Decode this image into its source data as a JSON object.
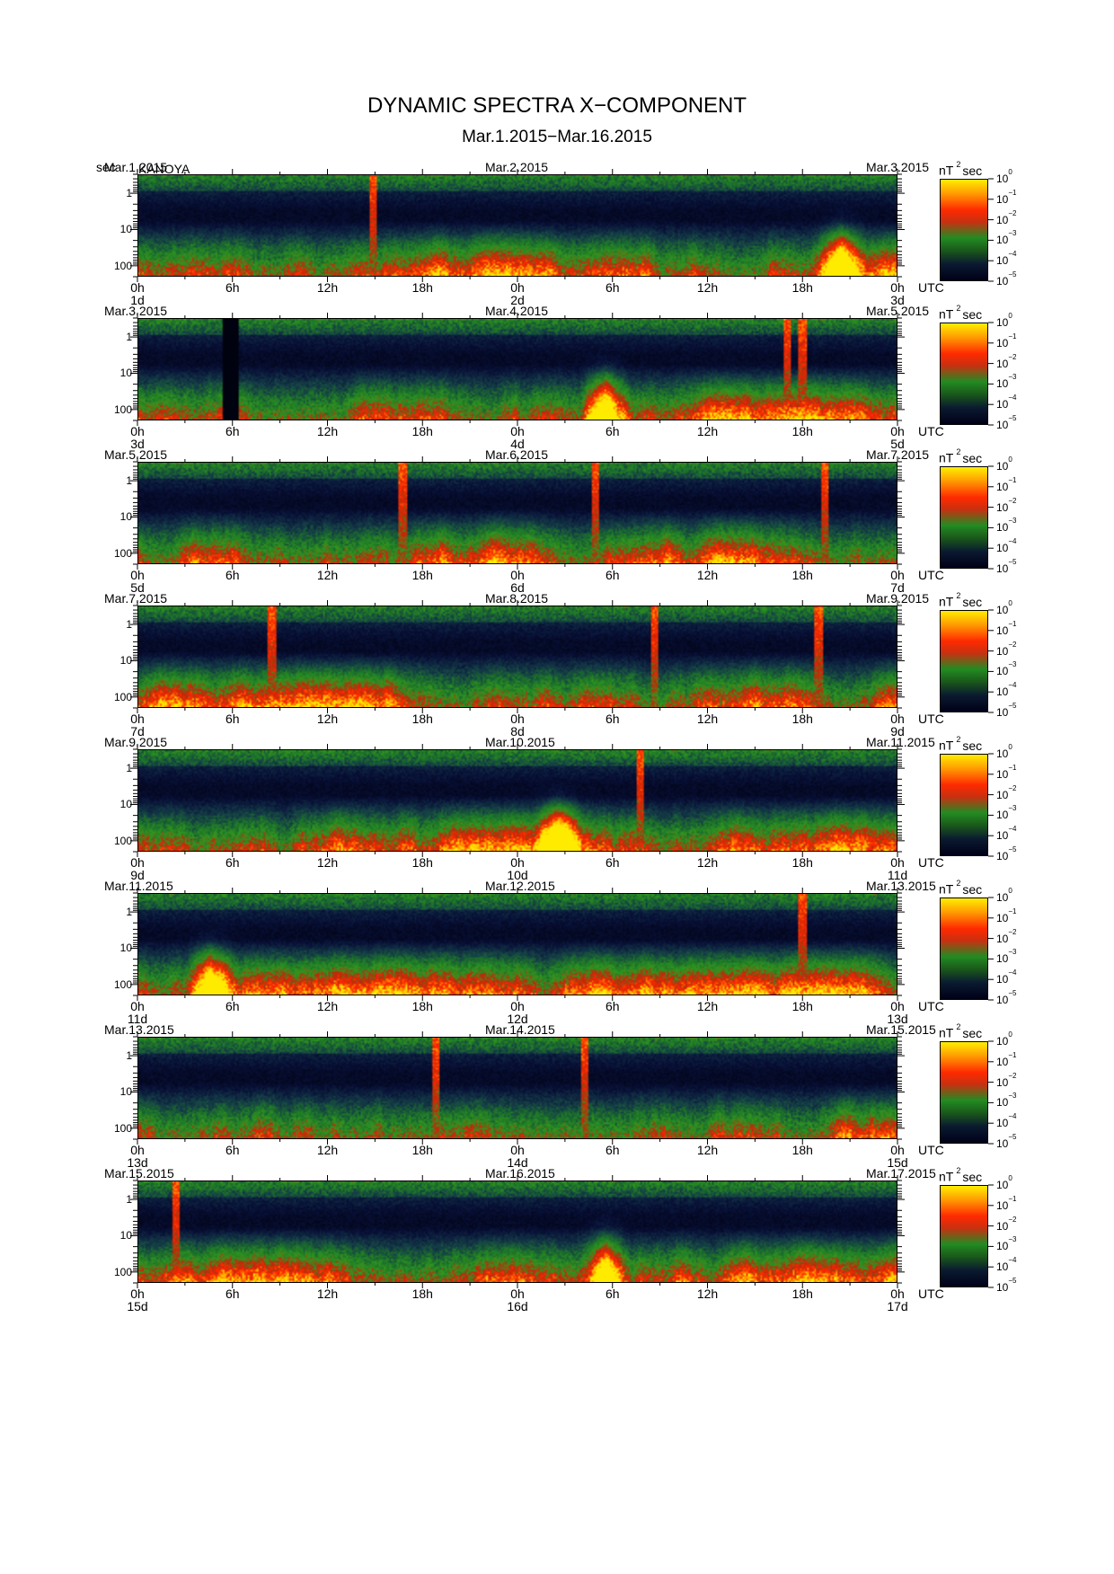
{
  "title": "DYNAMIC SPECTRA X−COMPONENT",
  "subtitle": "Mar.1.2015−Mar.16.2015",
  "y_unit": "sec",
  "station": "KANOYA",
  "colorbar": {
    "unit_base": "nT",
    "unit_exp": "2",
    "unit_tail": "sec",
    "ticks": [
      {
        "base": "10",
        "exp": "0"
      },
      {
        "base": "10",
        "exp": "−1"
      },
      {
        "base": "10",
        "exp": "−2"
      },
      {
        "base": "10",
        "exp": "−3"
      },
      {
        "base": "10",
        "exp": "−4"
      },
      {
        "base": "10",
        "exp": "−5"
      }
    ],
    "colors": [
      "#ffee00",
      "#ff9a00",
      "#ff2a00",
      "#228b22",
      "#0a1a30",
      "#000018"
    ]
  },
  "x_tick_labels": [
    "0h",
    "6h",
    "12h",
    "18h",
    "0h",
    "6h",
    "12h",
    "18h",
    "0h"
  ],
  "x_axis_unit": "UTC",
  "y_tick_labels": [
    "1",
    "10",
    "100"
  ],
  "chart_data": {
    "type": "heatmap",
    "x_axis": "time (UTC), two days per panel",
    "y_axis": "period (sec), log scale",
    "ylim": [
      0.3,
      200
    ],
    "colorscale_range": [
      1e-05,
      1
    ],
    "panels": [
      {
        "date_left": "Mar.1.2015",
        "date_mid": "Mar.2.2015",
        "date_right": "Mar.3.2015",
        "day_start": "1d",
        "day_mid": "2d",
        "day_end": "3d",
        "events": [
          {
            "x_hours": 14.8,
            "type": "spike"
          },
          {
            "x_hours": 44.5,
            "type": "burst"
          }
        ]
      },
      {
        "date_left": "Mar.3.2015",
        "date_mid": "Mar.4.2015",
        "date_right": "Mar.5.2015",
        "day_start": "3d",
        "day_mid": "4d",
        "day_end": "5d",
        "events": [
          {
            "x_hours": 5.8,
            "type": "gap"
          },
          {
            "x_hours": 41.0,
            "type": "spike"
          },
          {
            "x_hours": 42.0,
            "type": "spike"
          },
          {
            "x_hours": 29.5,
            "type": "burst"
          }
        ]
      },
      {
        "date_left": "Mar.5.2015",
        "date_mid": "Mar.6.2015",
        "date_right": "Mar.7.2015",
        "day_start": "5d",
        "day_mid": "6d",
        "day_end": "7d",
        "events": [
          {
            "x_hours": 16.7,
            "type": "spike"
          },
          {
            "x_hours": 28.9,
            "type": "spike"
          },
          {
            "x_hours": 43.4,
            "type": "spike"
          }
        ]
      },
      {
        "date_left": "Mar.7.2015",
        "date_mid": "Mar.8.2015",
        "date_right": "Mar.9.2015",
        "day_start": "7d",
        "day_mid": "8d",
        "day_end": "9d",
        "events": [
          {
            "x_hours": 8.4,
            "type": "spike"
          },
          {
            "x_hours": 32.6,
            "type": "spike"
          },
          {
            "x_hours": 43.0,
            "type": "spike"
          }
        ]
      },
      {
        "date_left": "Mar.9.2015",
        "date_mid": "Mar.10.2015",
        "date_right": "Mar.11.2015",
        "day_start": "9d",
        "day_mid": "10d",
        "day_end": "11d",
        "events": [
          {
            "x_hours": 26.5,
            "type": "burst"
          },
          {
            "x_hours": 31.7,
            "type": "spike"
          }
        ]
      },
      {
        "date_left": "Mar.11.2015",
        "date_mid": "Mar.12.2015",
        "date_right": "Mar.13.2015",
        "day_start": "11d",
        "day_mid": "12d",
        "day_end": "13d",
        "events": [
          {
            "x_hours": 42.0,
            "type": "spike"
          },
          {
            "x_hours": 4.5,
            "type": "burst"
          }
        ]
      },
      {
        "date_left": "Mar.13.2015",
        "date_mid": "Mar.14.2015",
        "date_right": "Mar.15.2015",
        "day_start": "13d",
        "day_mid": "14d",
        "day_end": "15d",
        "events": [
          {
            "x_hours": 18.8,
            "type": "spike"
          },
          {
            "x_hours": 28.2,
            "type": "spike"
          }
        ]
      },
      {
        "date_left": "Mar.15.2015",
        "date_mid": "Mar.16.2015",
        "date_right": "Mar.17.2015",
        "day_start": "15d",
        "day_mid": "16d",
        "day_end": "17d",
        "events": [
          {
            "x_hours": 2.3,
            "type": "spike"
          },
          {
            "x_hours": 29.5,
            "type": "burst"
          }
        ]
      }
    ]
  }
}
